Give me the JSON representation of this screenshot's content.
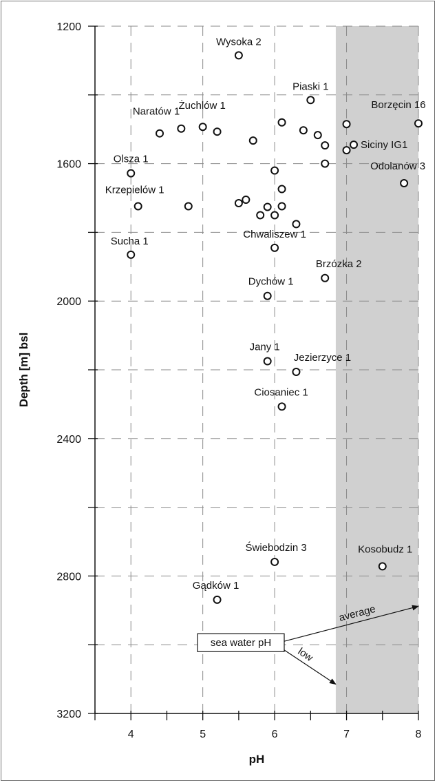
{
  "chart_data": {
    "type": "scatter",
    "title": "",
    "xlabel": "pH",
    "ylabel": "Depth [m] bsl",
    "xlim": [
      3.5,
      8
    ],
    "ylim": [
      1200,
      3200
    ],
    "y_inverted": true,
    "x_ticks": [
      4,
      5,
      6,
      7,
      8
    ],
    "y_ticks": [
      1200,
      1600,
      2000,
      2400,
      2800,
      3200
    ],
    "grid": true,
    "shaded_region": {
      "x_range": [
        6.85,
        8
      ],
      "color": "#d0d0d0"
    },
    "points": [
      {
        "x": 5.5,
        "y": 1285,
        "label": "Wysoka 2"
      },
      {
        "x": 6.5,
        "y": 1415,
        "label": "Piaski 1"
      },
      {
        "x": 4.4,
        "y": 1512,
        "label": "Naratów 1"
      },
      {
        "x": 4.7,
        "y": 1498,
        "label": ""
      },
      {
        "x": 5.0,
        "y": 1493,
        "label": "Żuchlów 1"
      },
      {
        "x": 5.2,
        "y": 1507,
        "label": ""
      },
      {
        "x": 5.7,
        "y": 1533,
        "label": ""
      },
      {
        "x": 6.1,
        "y": 1480,
        "label": ""
      },
      {
        "x": 6.4,
        "y": 1503,
        "label": ""
      },
      {
        "x": 6.6,
        "y": 1517,
        "label": ""
      },
      {
        "x": 6.7,
        "y": 1547,
        "label": ""
      },
      {
        "x": 7.0,
        "y": 1485,
        "label": ""
      },
      {
        "x": 8.0,
        "y": 1483,
        "label": "Borzęcin 16"
      },
      {
        "x": 7.0,
        "y": 1561,
        "label": ""
      },
      {
        "x": 7.1,
        "y": 1545,
        "label": "Siciny IG1"
      },
      {
        "x": 4.0,
        "y": 1628,
        "label": "Olsza 1"
      },
      {
        "x": 6.7,
        "y": 1600,
        "label": ""
      },
      {
        "x": 6.0,
        "y": 1620,
        "label": ""
      },
      {
        "x": 7.8,
        "y": 1657,
        "label": "Odolanów 3"
      },
      {
        "x": 6.1,
        "y": 1674,
        "label": ""
      },
      {
        "x": 4.1,
        "y": 1724,
        "label": "Krzepielów 1"
      },
      {
        "x": 4.8,
        "y": 1724,
        "label": ""
      },
      {
        "x": 5.5,
        "y": 1715,
        "label": ""
      },
      {
        "x": 5.6,
        "y": 1705,
        "label": ""
      },
      {
        "x": 5.8,
        "y": 1750,
        "label": ""
      },
      {
        "x": 5.9,
        "y": 1726,
        "label": ""
      },
      {
        "x": 6.0,
        "y": 1750,
        "label": ""
      },
      {
        "x": 6.1,
        "y": 1724,
        "label": ""
      },
      {
        "x": 6.3,
        "y": 1776,
        "label": ""
      },
      {
        "x": 4.0,
        "y": 1865,
        "label": "Sucha 1"
      },
      {
        "x": 6.0,
        "y": 1845,
        "label": "Chwaliszew 1"
      },
      {
        "x": 6.7,
        "y": 1933,
        "label": "Brzózka 2"
      },
      {
        "x": 5.9,
        "y": 1985,
        "label": "Dychów 1"
      },
      {
        "x": 5.9,
        "y": 2175,
        "label": "Jany 1"
      },
      {
        "x": 6.3,
        "y": 2206,
        "label": "Jezierzyce 1"
      },
      {
        "x": 6.1,
        "y": 2307,
        "label": "Ciosaniec 1"
      },
      {
        "x": 6.0,
        "y": 2759,
        "label": "Świebodzin 3"
      },
      {
        "x": 7.5,
        "y": 2772,
        "label": "Kosobudz 1"
      },
      {
        "x": 5.2,
        "y": 2869,
        "label": "Gądków 1"
      }
    ],
    "annotations": {
      "box_label": "sea water pH",
      "arrows": [
        {
          "label": "average",
          "to_x": 8.0,
          "to_y": 2888
        },
        {
          "label": "low",
          "to_x": 6.85,
          "to_y": 3115
        }
      ]
    }
  }
}
